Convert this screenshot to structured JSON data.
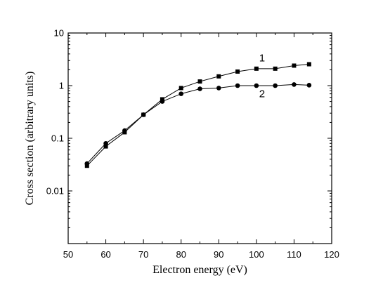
{
  "chart_data": {
    "type": "line",
    "xlabel": "Electron energy (eV)",
    "ylabel": "Cross section (arbitrary units)",
    "xlim": [
      50,
      120
    ],
    "ylim": [
      0.001,
      10
    ],
    "yscale": "log",
    "x_ticks": [
      "50",
      "60",
      "70",
      "80",
      "90",
      "100",
      "110",
      "120"
    ],
    "y_ticks": [
      "0.01",
      "0.1",
      "1",
      "10"
    ],
    "y_tick_values": [
      0.01,
      0.1,
      1,
      10
    ],
    "grid": false,
    "series": [
      {
        "name": "1",
        "marker": "square",
        "x": [
          55,
          60,
          65,
          70,
          75,
          80,
          85,
          90,
          95,
          100,
          105,
          110,
          114
        ],
        "y": [
          0.03,
          0.07,
          0.13,
          0.28,
          0.55,
          0.9,
          1.2,
          1.5,
          1.85,
          2.1,
          2.1,
          2.4,
          2.55
        ]
      },
      {
        "name": "2",
        "marker": "circle",
        "x": [
          55,
          60,
          65,
          70,
          75,
          80,
          85,
          90,
          95,
          100,
          105,
          110,
          114
        ],
        "y": [
          0.033,
          0.08,
          0.14,
          0.28,
          0.5,
          0.7,
          0.87,
          0.9,
          1.0,
          1.0,
          1.0,
          1.05,
          1.02
        ]
      }
    ]
  }
}
